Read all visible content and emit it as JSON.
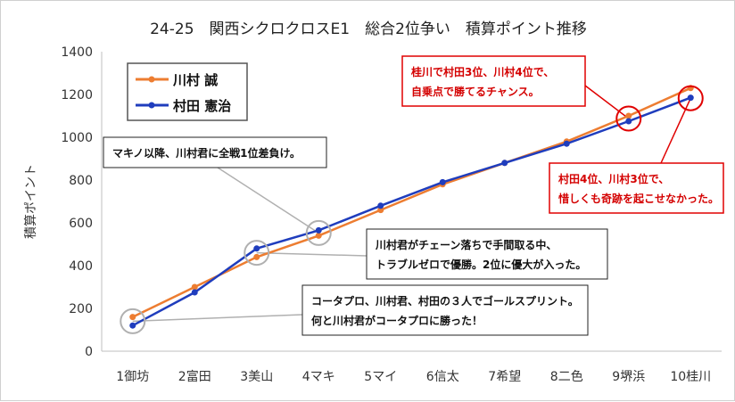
{
  "chart_data": {
    "type": "line",
    "title": "24-25　関西シクロクロスE1　総合2位争い　積算ポイント推移",
    "xlabel": "",
    "ylabel": "積算ポイント",
    "categories": [
      "1御坊",
      "2富田",
      "3美山",
      "4マキ",
      "5マイ",
      "6信太",
      "7希望",
      "8二色",
      "9堺浜",
      "10桂川"
    ],
    "ylim": [
      0,
      1400
    ],
    "yticks": [
      0,
      200,
      400,
      600,
      800,
      1000,
      1200,
      1400
    ],
    "grid": false,
    "legend_position": "top-left",
    "series": [
      {
        "name": "川村 誠",
        "color": "#ed7d31",
        "values": [
          160,
          300,
          440,
          540,
          660,
          780,
          880,
          980,
          1100,
          1230
        ]
      },
      {
        "name": "村田 憲治",
        "color": "#1f3dbd",
        "values": [
          120,
          275,
          480,
          565,
          680,
          790,
          880,
          970,
          1075,
          1185
        ]
      }
    ],
    "annotations": [
      {
        "id": "a1",
        "lines": [
          "マキノ以降、川村君に全戦1位差負け。"
        ],
        "style": "gray"
      },
      {
        "id": "a2",
        "lines": [
          "川村君がチェーン落ちで手間取る中、",
          "トラブルゼロで優勝。2位に優大が入った。"
        ],
        "style": "gray"
      },
      {
        "id": "a3",
        "lines": [
          "コータプロ、川村君、村田の３人でゴールスプリント。",
          "何と川村君がコータプロに勝った！"
        ],
        "style": "gray"
      },
      {
        "id": "a4",
        "lines": [
          "桂川で村田3位、川村4位で、",
          "自乗点で勝てるチャンス。"
        ],
        "style": "red"
      },
      {
        "id": "a5",
        "lines": [
          "村田4位、川村3位で、",
          "惜しくも奇跡を起こせなかった。"
        ],
        "style": "red"
      }
    ],
    "colors": {
      "circle_gray": "#b0b0b0",
      "highlight_red": "#e00000",
      "axis": "#bfbfbf"
    }
  }
}
